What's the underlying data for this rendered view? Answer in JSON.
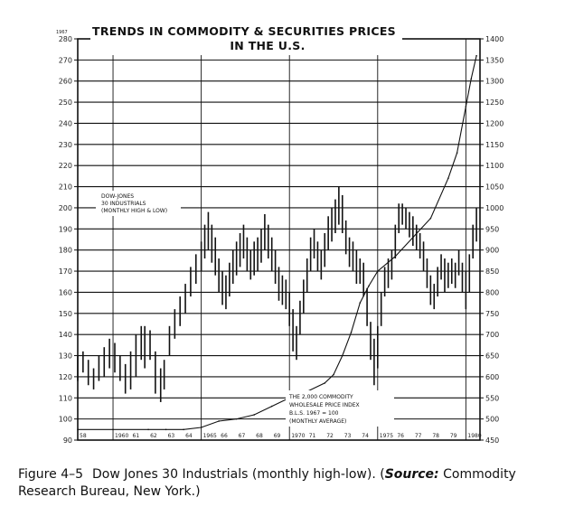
{
  "chart_data": {
    "type": "line",
    "title_line1": "TRENDS IN COMMODITY & SECURITIES PRICES",
    "title_line2": "IN THE U.S.",
    "left_axis_unit": "1967",
    "left_axis": {
      "ticks": [
        90,
        100,
        110,
        120,
        130,
        140,
        150,
        160,
        170,
        180,
        190,
        200,
        210,
        220,
        230,
        240,
        250,
        260,
        270,
        280
      ],
      "range": [
        90,
        280
      ]
    },
    "right_axis": {
      "ticks": [
        450,
        500,
        550,
        600,
        650,
        700,
        750,
        800,
        850,
        900,
        950,
        1000,
        1050,
        1100,
        1150,
        1200,
        1250,
        1300,
        1350,
        1400
      ],
      "range": [
        450,
        1400
      ]
    },
    "x_axis": {
      "range": [
        1958,
        1980.8
      ],
      "ticks": [
        {
          "year": 1958,
          "label": "58"
        },
        {
          "year": 1960,
          "label": "1960"
        },
        {
          "year": 1961,
          "label": "61"
        },
        {
          "year": 1962,
          "label": "62"
        },
        {
          "year": 1963,
          "label": "63"
        },
        {
          "year": 1964,
          "label": "64"
        },
        {
          "year": 1965,
          "label": "1965"
        },
        {
          "year": 1966,
          "label": "66"
        },
        {
          "year": 1967,
          "label": "67"
        },
        {
          "year": 1968,
          "label": "68"
        },
        {
          "year": 1969,
          "label": "69"
        },
        {
          "year": 1970,
          "label": "1970"
        },
        {
          "year": 1971,
          "label": "71"
        },
        {
          "year": 1972,
          "label": "72"
        },
        {
          "year": 1973,
          "label": "73"
        },
        {
          "year": 1974,
          "label": "74"
        },
        {
          "year": 1975,
          "label": "1975"
        },
        {
          "year": 1976,
          "label": "76"
        },
        {
          "year": 1977,
          "label": "77"
        },
        {
          "year": 1978,
          "label": "78"
        },
        {
          "year": 1979,
          "label": "79"
        },
        {
          "year": 1980,
          "label": "1980"
        }
      ]
    },
    "series": [
      {
        "name": "DOW-JONES 30 INDUSTRIALS (MONTHLY HIGH & LOW)",
        "axis": "right",
        "style": "high-low bars",
        "points": [
          {
            "x": 1958.0,
            "low": 590,
            "high": 650
          },
          {
            "x": 1958.3,
            "low": 610,
            "high": 660
          },
          {
            "x": 1958.6,
            "low": 580,
            "high": 640
          },
          {
            "x": 1958.9,
            "low": 570,
            "high": 620
          },
          {
            "x": 1959.2,
            "low": 590,
            "high": 650
          },
          {
            "x": 1959.5,
            "low": 600,
            "high": 670
          },
          {
            "x": 1959.8,
            "low": 620,
            "high": 690
          },
          {
            "x": 1960.1,
            "low": 610,
            "high": 680
          },
          {
            "x": 1960.4,
            "low": 590,
            "high": 650
          },
          {
            "x": 1960.7,
            "low": 560,
            "high": 630
          },
          {
            "x": 1961.0,
            "low": 570,
            "high": 660
          },
          {
            "x": 1961.3,
            "low": 600,
            "high": 700
          },
          {
            "x": 1961.6,
            "low": 640,
            "high": 720
          },
          {
            "x": 1961.8,
            "low": 620,
            "high": 720
          },
          {
            "x": 1962.1,
            "low": 640,
            "high": 710
          },
          {
            "x": 1962.4,
            "low": 560,
            "high": 660
          },
          {
            "x": 1962.7,
            "low": 540,
            "high": 620
          },
          {
            "x": 1962.9,
            "low": 570,
            "high": 640
          },
          {
            "x": 1963.2,
            "low": 650,
            "high": 720
          },
          {
            "x": 1963.5,
            "low": 690,
            "high": 760
          },
          {
            "x": 1963.8,
            "low": 720,
            "high": 790
          },
          {
            "x": 1964.1,
            "low": 750,
            "high": 820
          },
          {
            "x": 1964.4,
            "low": 790,
            "high": 860
          },
          {
            "x": 1964.7,
            "low": 820,
            "high": 890
          },
          {
            "x": 1965.0,
            "low": 850,
            "high": 920
          },
          {
            "x": 1965.2,
            "low": 880,
            "high": 960
          },
          {
            "x": 1965.4,
            "low": 900,
            "high": 990
          },
          {
            "x": 1965.6,
            "low": 870,
            "high": 960
          },
          {
            "x": 1965.8,
            "low": 840,
            "high": 930
          },
          {
            "x": 1966.0,
            "low": 800,
            "high": 880
          },
          {
            "x": 1966.2,
            "low": 770,
            "high": 850
          },
          {
            "x": 1966.4,
            "low": 760,
            "high": 840
          },
          {
            "x": 1966.6,
            "low": 790,
            "high": 870
          },
          {
            "x": 1966.8,
            "low": 820,
            "high": 900
          },
          {
            "x": 1967.0,
            "low": 840,
            "high": 920
          },
          {
            "x": 1967.2,
            "low": 860,
            "high": 940
          },
          {
            "x": 1967.4,
            "low": 880,
            "high": 960
          },
          {
            "x": 1967.6,
            "low": 850,
            "high": 930
          },
          {
            "x": 1967.8,
            "low": 830,
            "high": 900
          },
          {
            "x": 1968.0,
            "low": 840,
            "high": 920
          },
          {
            "x": 1968.2,
            "low": 850,
            "high": 930
          },
          {
            "x": 1968.4,
            "low": 870,
            "high": 950
          },
          {
            "x": 1968.6,
            "low": 900,
            "high": 985
          },
          {
            "x": 1968.8,
            "low": 880,
            "high": 960
          },
          {
            "x": 1969.0,
            "low": 850,
            "high": 930
          },
          {
            "x": 1969.2,
            "low": 820,
            "high": 900
          },
          {
            "x": 1969.4,
            "low": 780,
            "high": 860
          },
          {
            "x": 1969.6,
            "low": 770,
            "high": 840
          },
          {
            "x": 1969.8,
            "low": 760,
            "high": 830
          },
          {
            "x": 1970.0,
            "low": 720,
            "high": 800
          },
          {
            "x": 1970.2,
            "low": 660,
            "high": 760
          },
          {
            "x": 1970.4,
            "low": 640,
            "high": 720
          },
          {
            "x": 1970.6,
            "low": 700,
            "high": 780
          },
          {
            "x": 1970.8,
            "low": 750,
            "high": 830
          },
          {
            "x": 1971.0,
            "low": 800,
            "high": 880
          },
          {
            "x": 1971.2,
            "low": 850,
            "high": 930
          },
          {
            "x": 1971.4,
            "low": 880,
            "high": 950
          },
          {
            "x": 1971.6,
            "low": 850,
            "high": 920
          },
          {
            "x": 1971.8,
            "low": 830,
            "high": 900
          },
          {
            "x": 1972.0,
            "low": 860,
            "high": 940
          },
          {
            "x": 1972.2,
            "low": 900,
            "high": 980
          },
          {
            "x": 1972.4,
            "low": 920,
            "high": 1000
          },
          {
            "x": 1972.6,
            "low": 940,
            "high": 1020
          },
          {
            "x": 1972.8,
            "low": 960,
            "high": 1050
          },
          {
            "x": 1973.0,
            "low": 940,
            "high": 1030
          },
          {
            "x": 1973.2,
            "low": 890,
            "high": 970
          },
          {
            "x": 1973.4,
            "low": 860,
            "high": 930
          },
          {
            "x": 1973.6,
            "low": 850,
            "high": 920
          },
          {
            "x": 1973.8,
            "low": 820,
            "high": 900
          },
          {
            "x": 1974.0,
            "low": 820,
            "high": 880
          },
          {
            "x": 1974.2,
            "low": 790,
            "high": 870
          },
          {
            "x": 1974.4,
            "low": 720,
            "high": 810
          },
          {
            "x": 1974.6,
            "low": 640,
            "high": 730
          },
          {
            "x": 1974.8,
            "low": 580,
            "high": 690
          },
          {
            "x": 1975.0,
            "low": 620,
            "high": 720
          },
          {
            "x": 1975.2,
            "low": 720,
            "high": 800
          },
          {
            "x": 1975.4,
            "low": 790,
            "high": 860
          },
          {
            "x": 1975.6,
            "low": 810,
            "high": 880
          },
          {
            "x": 1975.8,
            "low": 830,
            "high": 900
          },
          {
            "x": 1976.0,
            "low": 880,
            "high": 960
          },
          {
            "x": 1976.2,
            "low": 940,
            "high": 1010
          },
          {
            "x": 1976.4,
            "low": 960,
            "high": 1010
          },
          {
            "x": 1976.6,
            "low": 950,
            "high": 1000
          },
          {
            "x": 1976.8,
            "low": 930,
            "high": 990
          },
          {
            "x": 1977.0,
            "low": 910,
            "high": 980
          },
          {
            "x": 1977.2,
            "low": 900,
            "high": 960
          },
          {
            "x": 1977.4,
            "low": 880,
            "high": 940
          },
          {
            "x": 1977.6,
            "low": 850,
            "high": 920
          },
          {
            "x": 1977.8,
            "low": 810,
            "high": 880
          },
          {
            "x": 1978.0,
            "low": 770,
            "high": 840
          },
          {
            "x": 1978.2,
            "low": 760,
            "high": 820
          },
          {
            "x": 1978.4,
            "low": 790,
            "high": 860
          },
          {
            "x": 1978.6,
            "low": 830,
            "high": 890
          },
          {
            "x": 1978.8,
            "low": 800,
            "high": 880
          },
          {
            "x": 1979.0,
            "low": 810,
            "high": 870
          },
          {
            "x": 1979.2,
            "low": 820,
            "high": 880
          },
          {
            "x": 1979.4,
            "low": 810,
            "high": 870
          },
          {
            "x": 1979.6,
            "low": 840,
            "high": 900
          },
          {
            "x": 1979.8,
            "low": 800,
            "high": 870
          },
          {
            "x": 1980.0,
            "low": 760,
            "high": 850
          },
          {
            "x": 1980.2,
            "low": 800,
            "high": 890
          },
          {
            "x": 1980.4,
            "low": 880,
            "high": 960
          },
          {
            "x": 1980.6,
            "low": 920,
            "high": 1000
          }
        ]
      },
      {
        "name": "THE 2,000 COMMODITY WHOLESALE PRICE INDEX B.L.S. 1967 = 100 (MONTHLY AVERAGE)",
        "axis": "left",
        "style": "line",
        "x": [
          1958.0,
          1960,
          1962,
          1963,
          1964,
          1965,
          1966,
          1967,
          1968,
          1969,
          1970,
          1971,
          1972,
          1972.5,
          1973,
          1973.5,
          1974,
          1974.5,
          1975,
          1976,
          1977,
          1978,
          1979,
          1979.5,
          1980,
          1980.3,
          1980.6
        ],
        "y": [
          95,
          95,
          95,
          95,
          95,
          96,
          99,
          100,
          102,
          106,
          110,
          113,
          117,
          121,
          130,
          141,
          155,
          163,
          170,
          177,
          186,
          195,
          214,
          226,
          248,
          261,
          272
        ]
      }
    ],
    "annotations": [
      {
        "lines": [
          "DOW-JONES",
          "30 INDUSTRIALS",
          "(MONTHLY HIGH & LOW)"
        ]
      },
      {
        "lines": [
          "THE 2,000 COMMODITY",
          "WHOLESALE PRICE INDEX",
          "B.L.S. 1967 = 100",
          "(MONTHLY AVERAGE)"
        ]
      }
    ]
  },
  "caption": {
    "figure_number": "Figure 4–5",
    "text_before_source": "Dow Jones 30 Industrials (monthly high-low). (",
    "source_label": "Source:",
    "text_after_source": " Commodity Research Bureau, New York.)"
  }
}
